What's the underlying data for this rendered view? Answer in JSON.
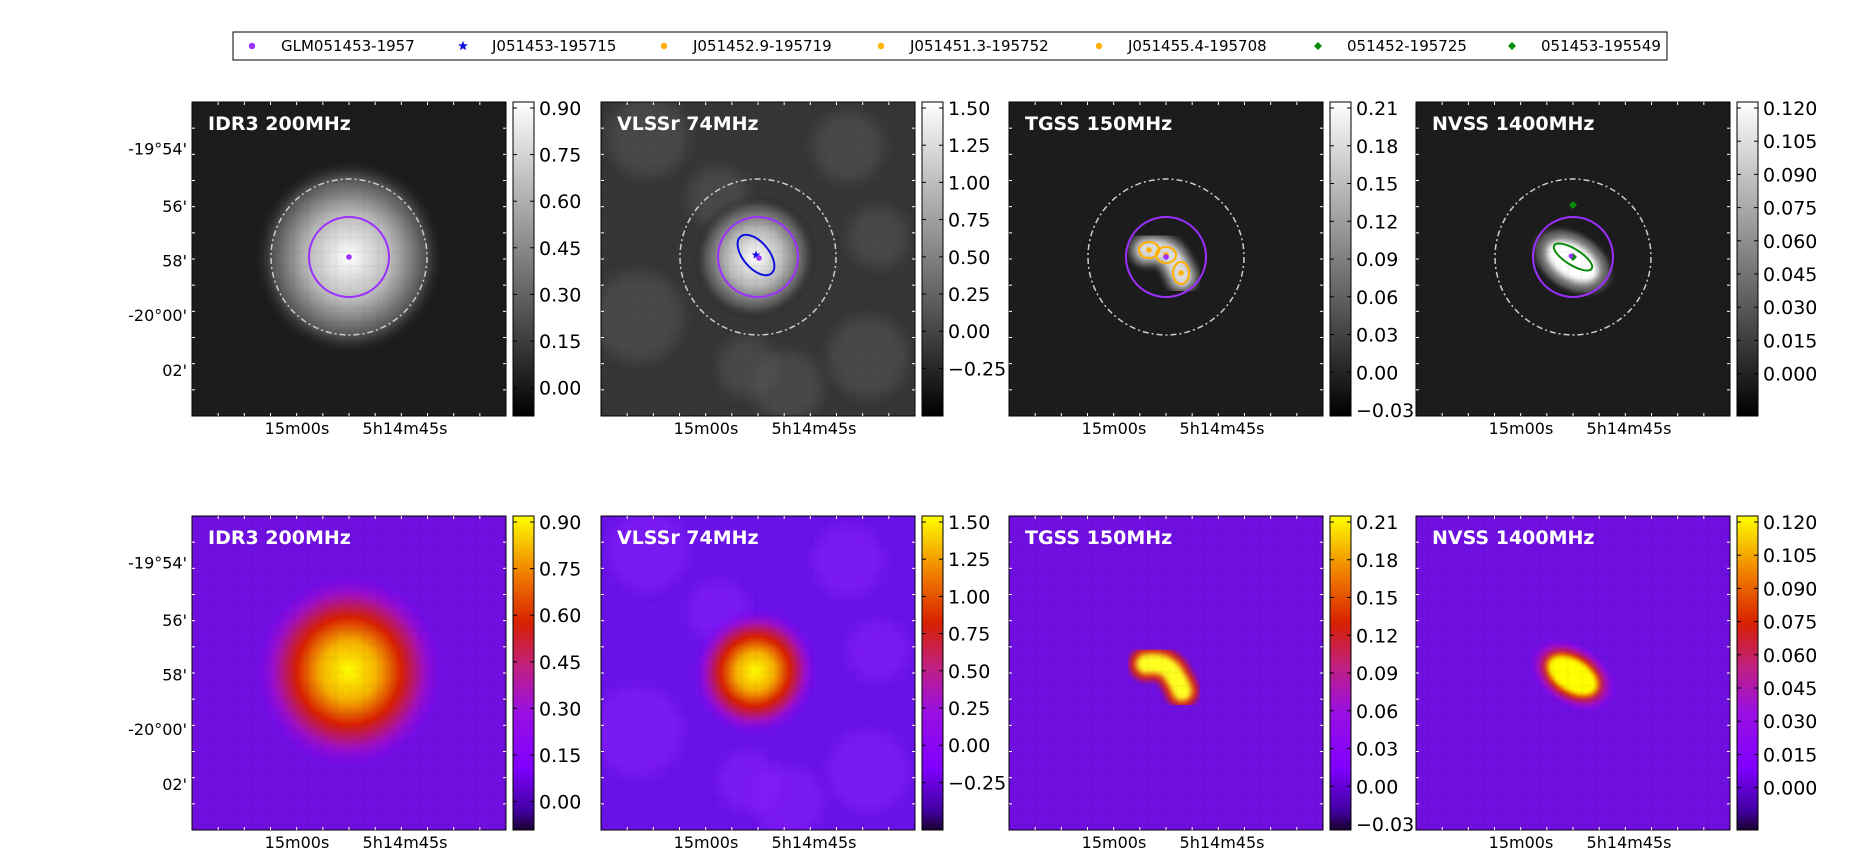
{
  "legend": {
    "entries": [
      {
        "label": "GLM051453-1957",
        "color": "#9b30ff",
        "marker": "circle"
      },
      {
        "label": "J051453-195715",
        "color": "#1010e0",
        "marker": "star"
      },
      {
        "label": "J051452.9-195719",
        "color": "#ffb000",
        "marker": "circle"
      },
      {
        "label": "J051451.3-195752",
        "color": "#ffb000",
        "marker": "circle"
      },
      {
        "label": "J051455.4-195708",
        "color": "#ffb000",
        "marker": "circle"
      },
      {
        "label": "051452-195725",
        "color": "#0a8a0a",
        "marker": "diamond"
      },
      {
        "label": "051453-195549",
        "color": "#0a8a0a",
        "marker": "diamond"
      }
    ]
  },
  "axes": {
    "y_ticks": [
      "-19°54'",
      "56'",
      "58'",
      "-20°00'",
      "02'"
    ],
    "x_ticks": [
      "15m00s",
      "5h14m45s"
    ]
  },
  "panels": [
    {
      "title": "IDR3 200MHz",
      "cbar_ticks": [
        "0.90",
        "0.75",
        "0.60",
        "0.45",
        "0.30",
        "0.15",
        "0.00"
      ]
    },
    {
      "title": "VLSSr 74MHz",
      "cbar_ticks": [
        "1.50",
        "1.25",
        "1.00",
        "0.75",
        "0.50",
        "0.25",
        "0.00",
        "−0.25"
      ]
    },
    {
      "title": "TGSS 150MHz",
      "cbar_ticks": [
        "0.21",
        "0.18",
        "0.15",
        "0.12",
        "0.09",
        "0.06",
        "0.03",
        "0.00",
        "−0.03"
      ]
    },
    {
      "title": "NVSS 1400MHz",
      "cbar_ticks": [
        "0.120",
        "0.105",
        "0.090",
        "0.075",
        "0.060",
        "0.045",
        "0.030",
        "0.015",
        "0.000"
      ]
    }
  ],
  "rows": [
    {
      "colormap": "gray",
      "annotated": true
    },
    {
      "colormap": "gnuplot",
      "annotated": false
    }
  ]
}
